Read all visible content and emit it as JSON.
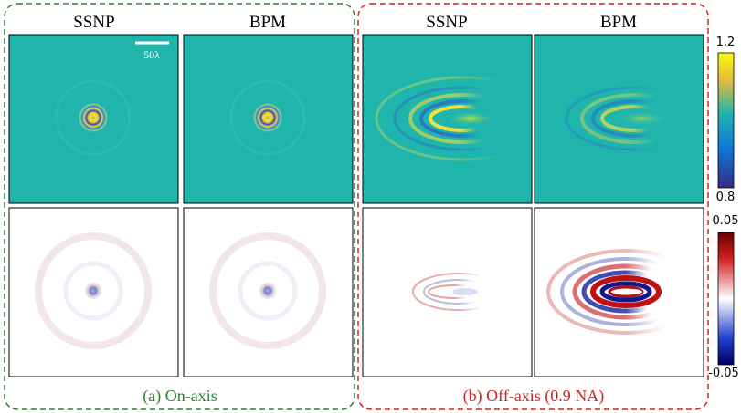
{
  "figure": {
    "groups": [
      {
        "label": "(a) On-axis",
        "columns": [
          "SSNP",
          "BPM"
        ]
      },
      {
        "label": "(b) Off-axis (0.9 NA)",
        "columns": [
          "SSNP",
          "BPM"
        ]
      }
    ],
    "scale_bar": "50λ",
    "colorbars": [
      {
        "max": 1.2,
        "min": 0.8
      },
      {
        "max": 0.05,
        "min": -0.05
      }
    ]
  }
}
